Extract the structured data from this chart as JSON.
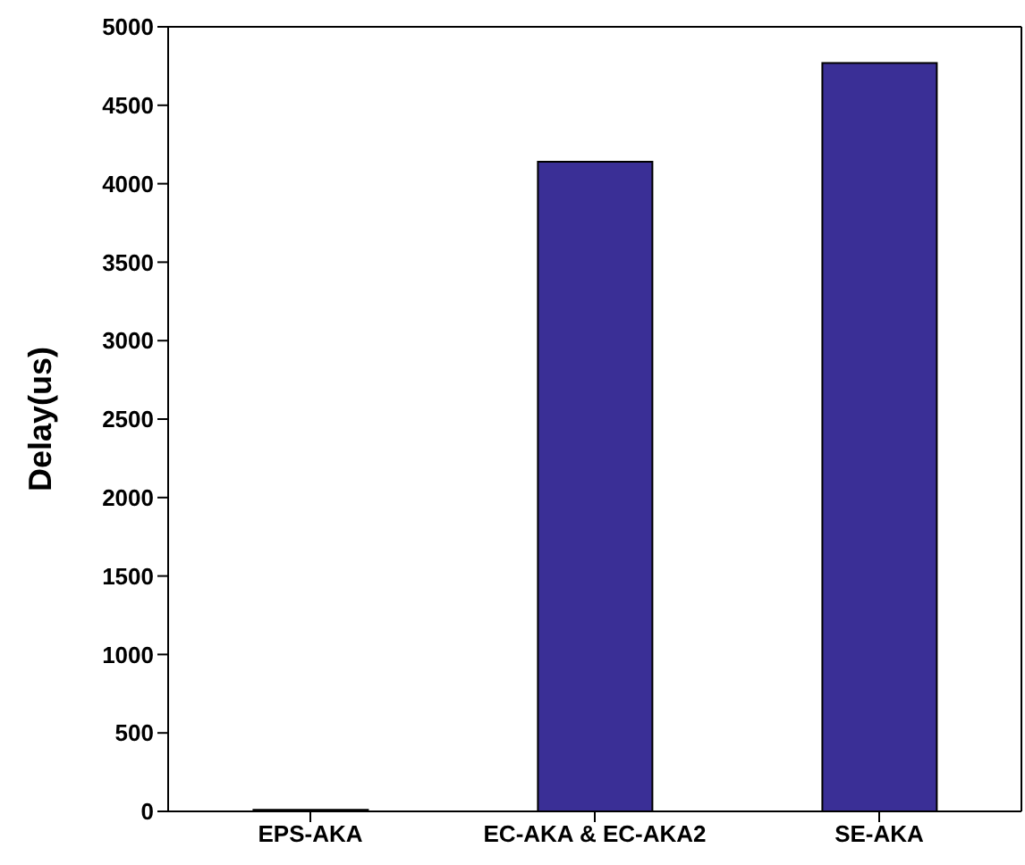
{
  "chart_data": {
    "type": "bar",
    "ylabel": "Delay(us)",
    "categories": [
      "EPS-AKA",
      "EC-AKA & EC-AKA2",
      "SE-AKA"
    ],
    "values": [
      10,
      4140,
      4770
    ],
    "color": "#3a2f96",
    "ylim": [
      0,
      5000
    ],
    "yticks": [
      0,
      500,
      1000,
      1500,
      2000,
      2500,
      3000,
      3500,
      4000,
      4500,
      5000
    ],
    "grid": false
  }
}
